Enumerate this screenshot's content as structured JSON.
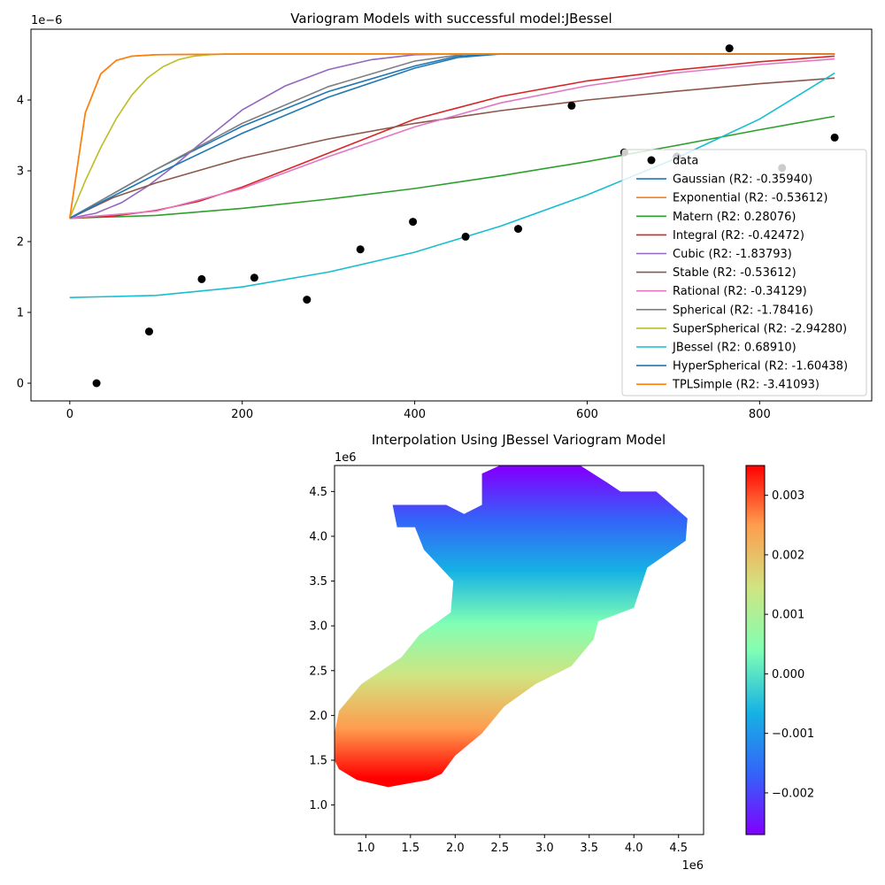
{
  "chart_data": [
    {
      "type": "line",
      "title": "Variogram Models with successful model:JBessel",
      "xlabel": "",
      "ylabel": "",
      "y_scale_label": "1e−6",
      "xlim": [
        -45,
        930
      ],
      "ylim": [
        -0.25,
        5.0
      ],
      "xticks": [
        0,
        200,
        400,
        600,
        800
      ],
      "xtick_labels": [
        "0",
        "200",
        "400",
        "600",
        "800"
      ],
      "yticks": [
        0,
        1,
        2,
        3,
        4
      ],
      "ytick_labels": [
        "0",
        "1",
        "2",
        "3",
        "4"
      ],
      "grid": false,
      "legend_position": "lower-right",
      "scatter": {
        "name": "data",
        "color": "#000000",
        "x": [
          31,
          92,
          153,
          214,
          275,
          337,
          398,
          459,
          520,
          582,
          643,
          704,
          765,
          826,
          887
        ],
        "y": [
          0.0,
          0.73,
          1.47,
          1.49,
          1.18,
          1.89,
          2.28,
          2.07,
          2.18,
          3.92,
          3.26,
          3.2,
          4.73,
          3.04,
          3.47
        ]
      },
      "series": [
        {
          "name": "Gaussian (R2: -0.35940)",
          "color": "#1f77b4",
          "x": [
            0,
            100,
            200,
            300,
            400,
            450,
            500,
            600,
            700,
            800,
            887
          ],
          "y": [
            2.33,
            3.02,
            3.63,
            4.12,
            4.48,
            4.62,
            4.65,
            4.65,
            4.65,
            4.65,
            4.65
          ]
        },
        {
          "name": "Exponential (R2: -0.53612)",
          "color": "#ff7f0e",
          "x": [
            0,
            18,
            36,
            54,
            72,
            100,
            200,
            400,
            600,
            887
          ],
          "y": [
            2.33,
            3.82,
            4.37,
            4.56,
            4.62,
            4.64,
            4.65,
            4.65,
            4.65,
            4.65
          ]
        },
        {
          "name": "Matern (R2: 0.28076)",
          "color": "#2ca02c",
          "x": [
            0,
            100,
            200,
            300,
            400,
            500,
            600,
            700,
            800,
            887
          ],
          "y": [
            2.33,
            2.37,
            2.47,
            2.6,
            2.75,
            2.93,
            3.13,
            3.35,
            3.58,
            3.77
          ]
        },
        {
          "name": "Integral (R2: -0.42472)",
          "color": "#d62728",
          "x": [
            0,
            50,
            100,
            150,
            200,
            300,
            400,
            500,
            600,
            700,
            800,
            887
          ],
          "y": [
            2.33,
            2.36,
            2.44,
            2.57,
            2.77,
            3.25,
            3.73,
            4.05,
            4.27,
            4.42,
            4.54,
            4.62
          ]
        },
        {
          "name": "Cubic (R2: -1.83793)",
          "color": "#9467bd",
          "x": [
            0,
            30,
            60,
            90,
            120,
            150,
            200,
            250,
            300,
            350,
            400,
            450,
            500,
            600,
            887
          ],
          "y": [
            2.33,
            2.4,
            2.55,
            2.78,
            3.06,
            3.37,
            3.86,
            4.2,
            4.43,
            4.57,
            4.64,
            4.65,
            4.65,
            4.65,
            4.65
          ]
        },
        {
          "name": "Stable (R2: -0.53612)",
          "color": "#8c564b",
          "x": [
            0,
            50,
            100,
            200,
            300,
            400,
            500,
            600,
            700,
            800,
            887
          ],
          "y": [
            2.33,
            2.62,
            2.83,
            3.18,
            3.45,
            3.67,
            3.85,
            4.0,
            4.12,
            4.23,
            4.31
          ]
        },
        {
          "name": "Rational (R2: -0.34129)",
          "color": "#e377c2",
          "x": [
            0,
            100,
            200,
            300,
            400,
            500,
            600,
            700,
            800,
            887
          ],
          "y": [
            2.33,
            2.43,
            2.75,
            3.2,
            3.62,
            3.96,
            4.2,
            4.38,
            4.5,
            4.58
          ]
        },
        {
          "name": "Spherical (R2: -1.78416)",
          "color": "#7f7f7f",
          "x": [
            0,
            100,
            200,
            300,
            400,
            460,
            500,
            600,
            887
          ],
          "y": [
            2.33,
            3.02,
            3.67,
            4.19,
            4.55,
            4.65,
            4.65,
            4.65,
            4.65
          ]
        },
        {
          "name": "SuperSpherical (R2: -2.94280)",
          "color": "#bcbd22",
          "x": [
            0,
            18,
            36,
            54,
            72,
            90,
            108,
            126,
            144,
            162,
            180,
            250,
            887
          ],
          "y": [
            2.33,
            2.86,
            3.33,
            3.74,
            4.07,
            4.31,
            4.47,
            4.57,
            4.62,
            4.64,
            4.65,
            4.65,
            4.65
          ]
        },
        {
          "name": "JBessel (R2: 0.68910)",
          "color": "#17becf",
          "x": [
            0,
            100,
            200,
            300,
            400,
            500,
            600,
            700,
            800,
            887
          ],
          "y": [
            1.21,
            1.24,
            1.36,
            1.57,
            1.85,
            2.22,
            2.66,
            3.16,
            3.73,
            4.38
          ]
        },
        {
          "name": "HyperSpherical (R2: -1.60438)",
          "color": "#1f77b4",
          "x": [
            0,
            100,
            200,
            300,
            400,
            450,
            500,
            600,
            887
          ],
          "y": [
            2.33,
            2.95,
            3.53,
            4.04,
            4.45,
            4.6,
            4.65,
            4.65,
            4.65
          ]
        },
        {
          "name": "TPLSimple (R2: -3.41093)",
          "color": "#ff7f0e",
          "x": [
            0,
            18,
            36,
            54,
            72,
            100,
            200,
            887
          ],
          "y": [
            2.33,
            3.82,
            4.37,
            4.56,
            4.62,
            4.64,
            4.65,
            4.65
          ]
        }
      ]
    },
    {
      "type": "heatmap",
      "title": "Interpolation Using JBessel Variogram Model",
      "xlabel": "",
      "ylabel": "",
      "x_offset_label": "1e6",
      "y_offset_label": "1e6",
      "xlim": [
        0.65,
        4.78
      ],
      "ylim": [
        0.67,
        4.79
      ],
      "xticks": [
        1.0,
        1.5,
        2.0,
        2.5,
        3.0,
        3.5,
        4.0,
        4.5
      ],
      "xtick_labels": [
        "1.0",
        "1.5",
        "2.0",
        "2.5",
        "3.0",
        "3.5",
        "4.0",
        "4.5"
      ],
      "yticks": [
        1.0,
        1.5,
        2.0,
        2.5,
        3.0,
        3.5,
        4.0,
        4.5
      ],
      "ytick_labels": [
        "1.0",
        "1.5",
        "2.0",
        "2.5",
        "3.0",
        "3.5",
        "4.0",
        "4.5"
      ],
      "colormap": "rainbow",
      "value_range": [
        -0.0027,
        0.0035
      ],
      "color_gradient_y": [
        1.3,
        4.75
      ],
      "colorbar_ticks": [
        0.003,
        0.002,
        0.001,
        0.0,
        -0.001,
        -0.002
      ],
      "colorbar_tick_labels": [
        "0.003",
        "0.002",
        "0.001",
        "0.000",
        "−0.001",
        "−0.002"
      ],
      "region_outline": [
        [
          0.65,
          1.8
        ],
        [
          0.7,
          2.05
        ],
        [
          0.95,
          2.35
        ],
        [
          1.4,
          2.65
        ],
        [
          1.6,
          2.9
        ],
        [
          1.95,
          3.15
        ],
        [
          1.98,
          3.5
        ],
        [
          1.65,
          3.85
        ],
        [
          1.55,
          4.1
        ],
        [
          1.35,
          4.1
        ],
        [
          1.3,
          4.35
        ],
        [
          1.9,
          4.35
        ],
        [
          2.1,
          4.25
        ],
        [
          2.3,
          4.35
        ],
        [
          2.3,
          4.7
        ],
        [
          2.5,
          4.79
        ],
        [
          3.4,
          4.79
        ],
        [
          3.7,
          4.6
        ],
        [
          3.85,
          4.5
        ],
        [
          4.25,
          4.5
        ],
        [
          4.6,
          4.2
        ],
        [
          4.58,
          3.95
        ],
        [
          4.15,
          3.65
        ],
        [
          4.0,
          3.2
        ],
        [
          3.6,
          3.05
        ],
        [
          3.55,
          2.85
        ],
        [
          3.3,
          2.55
        ],
        [
          2.9,
          2.35
        ],
        [
          2.55,
          2.1
        ],
        [
          2.3,
          1.8
        ],
        [
          2.0,
          1.55
        ],
        [
          1.85,
          1.35
        ],
        [
          1.7,
          1.28
        ],
        [
          1.25,
          1.2
        ],
        [
          0.9,
          1.28
        ],
        [
          0.7,
          1.4
        ],
        [
          0.65,
          1.5
        ]
      ]
    }
  ]
}
